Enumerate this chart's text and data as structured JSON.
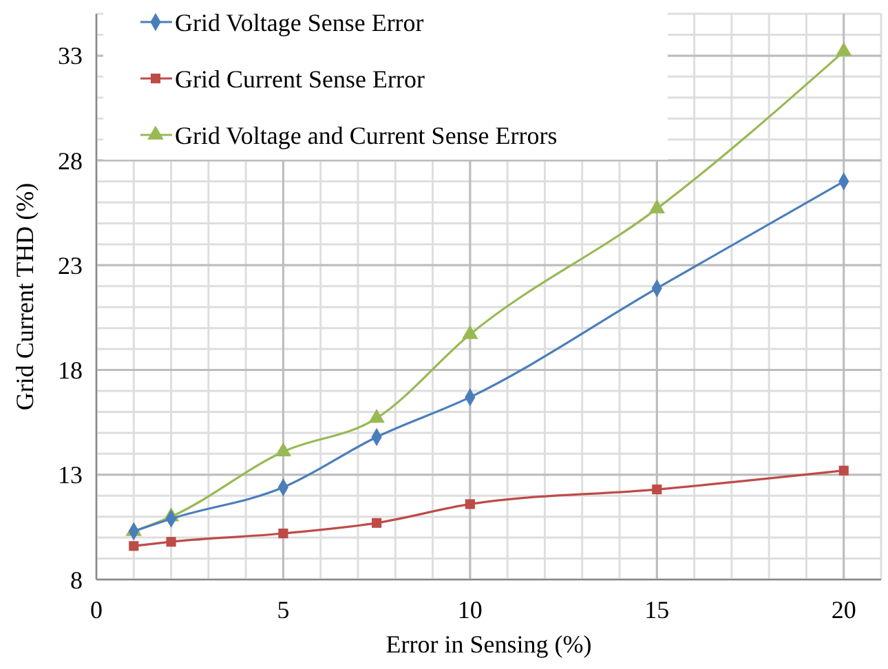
{
  "chart_data": {
    "type": "line",
    "xlabel": "Error in Sensing (%)",
    "ylabel": "Grid Current THD (%)",
    "x": [
      1,
      2,
      5,
      7.5,
      10,
      15,
      20
    ],
    "series": [
      {
        "name": "Grid Voltage Sense Error",
        "color": "#4a7ebb",
        "marker": "diamond",
        "values": [
          10.3,
          10.9,
          12.4,
          14.8,
          16.7,
          21.9,
          27.0
        ]
      },
      {
        "name": "Grid Current Sense Error",
        "color": "#be4b48",
        "marker": "square",
        "values": [
          9.6,
          9.8,
          10.2,
          10.7,
          11.6,
          12.3,
          13.2
        ]
      },
      {
        "name": "Grid Voltage and Current Sense Errors",
        "color": "#98b954",
        "marker": "triangle",
        "values": [
          10.3,
          11.0,
          14.1,
          15.7,
          19.7,
          25.7,
          33.2
        ]
      }
    ],
    "xlim": [
      0,
      21
    ],
    "ylim": [
      8,
      35
    ],
    "xticks": [
      0,
      5,
      10,
      15,
      20
    ],
    "yticks": [
      8,
      13,
      18,
      23,
      28,
      33
    ],
    "grid": true,
    "legend": "top left",
    "line_style": "solid"
  }
}
